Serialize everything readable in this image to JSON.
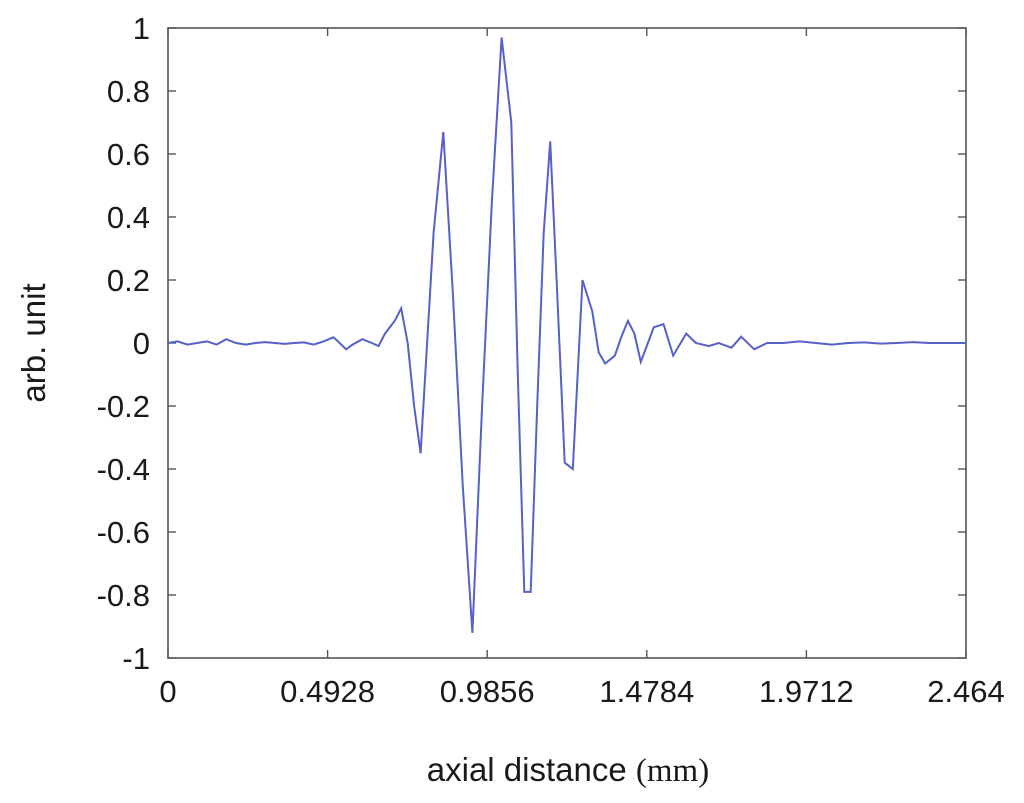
{
  "chart_data": {
    "type": "line",
    "title": "",
    "xlabel": "axial distance",
    "xlabel_unit": "(mm)",
    "ylabel": "arb. unit",
    "xlim": [
      0,
      2.464
    ],
    "ylim": [
      -1,
      1
    ],
    "x_ticks": [
      0,
      0.4928,
      0.9856,
      1.4784,
      1.9712,
      2.464
    ],
    "x_tick_labels": [
      "0",
      "0.4928",
      "0.9856",
      "1.4784",
      "1.9712",
      "2.464"
    ],
    "y_ticks": [
      1,
      0.8,
      0.6,
      0.4,
      0.2,
      0,
      -0.2,
      -0.4,
      -0.6,
      -0.8,
      -1
    ],
    "y_tick_labels": [
      "1",
      "0.8",
      "0.6",
      "0.4",
      "0.2",
      "0",
      "-0.2",
      "-0.4",
      "-0.6",
      "-0.8",
      "-1"
    ],
    "grid": false,
    "line_color": "#5560c8",
    "series": [
      {
        "x": [
          0,
          0.03,
          0.06,
          0.09,
          0.12,
          0.15,
          0.18,
          0.21,
          0.24,
          0.27,
          0.3,
          0.33,
          0.36,
          0.39,
          0.42,
          0.45,
          0.48,
          0.51,
          0.525,
          0.55,
          0.57,
          0.6,
          0.63,
          0.65,
          0.67,
          0.7,
          0.72,
          0.74,
          0.76,
          0.78,
          0.8,
          0.82,
          0.85,
          0.88,
          0.91,
          0.94,
          0.97,
          1.0,
          1.03,
          1.06,
          1.08,
          1.1,
          1.12,
          1.14,
          1.16,
          1.18,
          1.2,
          1.225,
          1.25,
          1.28,
          1.31,
          1.33,
          1.35,
          1.38,
          1.4,
          1.42,
          1.44,
          1.46,
          1.5,
          1.53,
          1.56,
          1.6,
          1.63,
          1.67,
          1.7,
          1.74,
          1.77,
          1.81,
          1.85,
          1.9,
          1.95,
          2.0,
          2.05,
          2.1,
          2.15,
          2.2,
          2.25,
          2.3,
          2.35,
          2.4,
          2.464
        ],
        "y": [
          0.0,
          0.005,
          -0.005,
          0.0,
          0.005,
          -0.005,
          0.012,
          0.0,
          -0.005,
          0.0,
          0.003,
          0.0,
          -0.003,
          0.0,
          0.002,
          -0.005,
          0.005,
          0.018,
          0.005,
          -0.02,
          -0.005,
          0.012,
          0.0,
          -0.01,
          0.03,
          0.07,
          0.11,
          0.0,
          -0.2,
          -0.35,
          0.0,
          0.35,
          0.67,
          0.15,
          -0.45,
          -0.92,
          -0.2,
          0.45,
          0.97,
          0.7,
          -0.1,
          -0.79,
          -0.79,
          -0.2,
          0.35,
          0.64,
          0.2,
          -0.38,
          -0.4,
          0.2,
          0.1,
          -0.03,
          -0.065,
          -0.04,
          0.02,
          0.07,
          0.03,
          -0.06,
          0.05,
          0.06,
          -0.04,
          0.03,
          0.0,
          -0.01,
          0.0,
          -0.015,
          0.02,
          -0.02,
          0.0,
          0.0,
          0.005,
          0.0,
          -0.005,
          0.0,
          0.002,
          -0.002,
          0.0,
          0.003,
          0.0,
          0.0,
          0.0
        ]
      }
    ]
  }
}
